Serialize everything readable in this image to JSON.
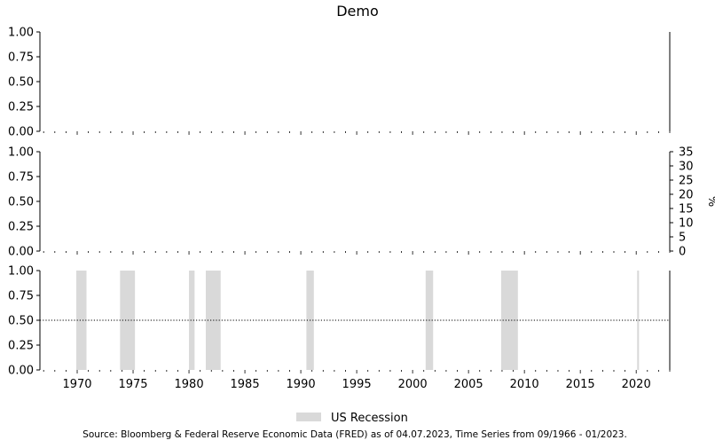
{
  "chart_data": {
    "type": "area",
    "title": "Demo",
    "xlim": [
      "1966-09",
      "2023-01"
    ],
    "x_ticks": [
      1970,
      1975,
      1980,
      1985,
      1990,
      1995,
      2000,
      2005,
      2010,
      2015,
      2020
    ],
    "left_y_ticks": [
      "0.00",
      "0.25",
      "0.50",
      "0.75",
      "1.00"
    ],
    "ylim": [
      0,
      1
    ],
    "panels": [
      {
        "name": "top",
        "left_ylim": [
          0,
          1
        ]
      },
      {
        "name": "middle",
        "left_ylim": [
          0,
          1
        ],
        "right_ylabel": "%",
        "right_ylim": [
          0,
          35
        ],
        "right_y_ticks": [
          "0",
          "5",
          "10",
          "15",
          "20",
          "25",
          "30",
          "35"
        ]
      },
      {
        "name": "bottom",
        "left_ylim": [
          0,
          1
        ],
        "hline": 0.5,
        "hline_style": "dotted",
        "recessions": [
          [
            "1969-12",
            "1970-11"
          ],
          [
            "1973-11",
            "1975-03"
          ],
          [
            "1980-01",
            "1980-07"
          ],
          [
            "1981-07",
            "1982-11"
          ],
          [
            "1990-07",
            "1991-03"
          ],
          [
            "2001-03",
            "2001-11"
          ],
          [
            "2007-12",
            "2009-06"
          ],
          [
            "2020-02",
            "2020-04"
          ]
        ],
        "recession_color": "#d9d9d9"
      }
    ],
    "legend": {
      "placement": "bottom-center",
      "entries": [
        {
          "label": "US Recession",
          "color": "#d9d9d9"
        }
      ]
    },
    "source": "Source: Bloomberg & Federal Reserve Economic Data (FRED) as of 04.07.2023, Time Series from 09/1966 - 01/2023."
  }
}
